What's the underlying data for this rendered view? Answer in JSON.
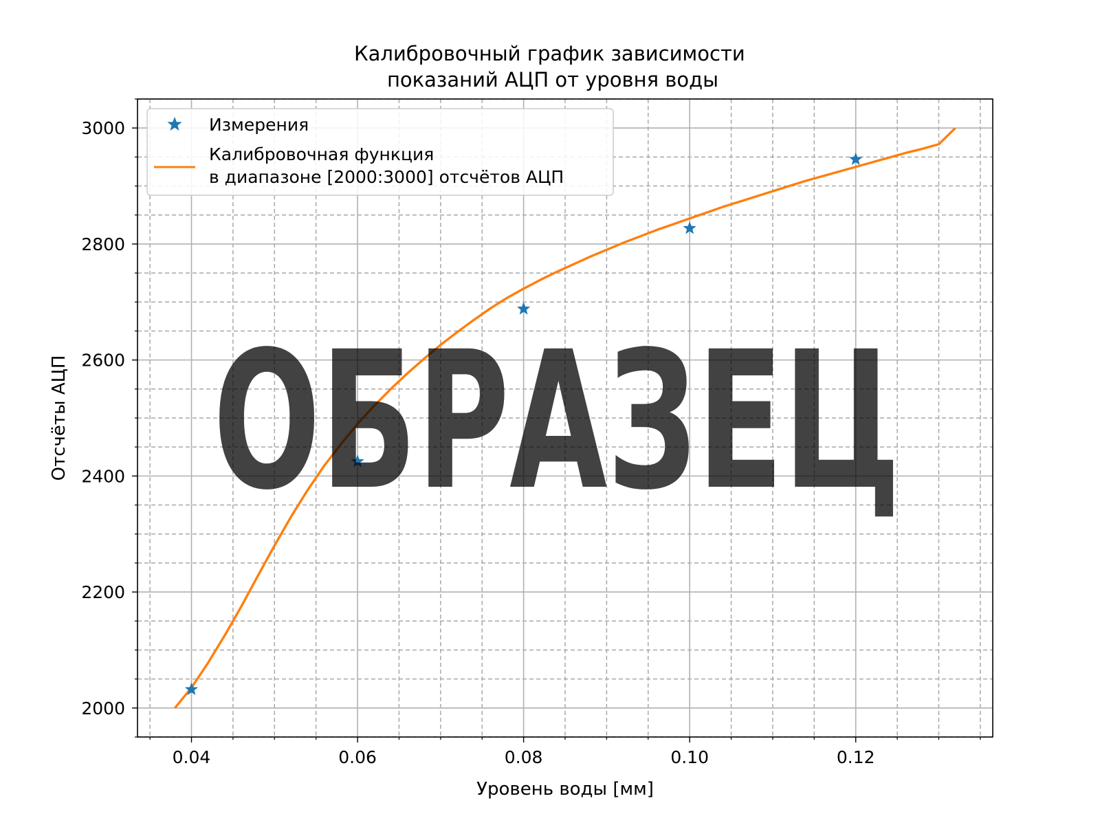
{
  "chart_data": {
    "type": "line",
    "title": "Калибровочный график зависимости\nпоказаний АЦП от уровня воды",
    "xlabel": "Уровень воды [мм]",
    "ylabel": "Отсчёты АЦП",
    "xlim": [
      0.0335,
      0.1365
    ],
    "ylim": [
      1950,
      3050
    ],
    "x_ticks": [
      0.04,
      0.06,
      0.08,
      0.1,
      0.12
    ],
    "x_tick_labels": [
      "0.04",
      "0.06",
      "0.08",
      "0.10",
      "0.12"
    ],
    "y_ticks": [
      2000,
      2200,
      2400,
      2600,
      2800,
      3000
    ],
    "y_tick_labels": [
      "2000",
      "2200",
      "2400",
      "2600",
      "2800",
      "3000"
    ],
    "grid": true,
    "minor_grid": true,
    "legend_position": "upper-left",
    "series": [
      {
        "name": "Измерения",
        "kind": "scatter",
        "marker": "star",
        "color": "#1f77b4",
        "x": [
          0.04,
          0.06,
          0.08,
          0.1,
          0.12
        ],
        "y": [
          2032,
          2425,
          2688,
          2827,
          2946
        ]
      },
      {
        "name": "Калибровочная функция\nв диапазоне [2000:3000] отсчётов АЦП",
        "kind": "line",
        "color": "#ff7f0e",
        "x": [
          0.038,
          0.04,
          0.042,
          0.044,
          0.046,
          0.048,
          0.05,
          0.052,
          0.054,
          0.056,
          0.058,
          0.06,
          0.062,
          0.064,
          0.066,
          0.068,
          0.07,
          0.072,
          0.074,
          0.076,
          0.078,
          0.08,
          0.082,
          0.084,
          0.086,
          0.088,
          0.09,
          0.092,
          0.094,
          0.096,
          0.098,
          0.1,
          0.102,
          0.104,
          0.106,
          0.108,
          0.11,
          0.112,
          0.114,
          0.116,
          0.118,
          0.12,
          0.122,
          0.124,
          0.126,
          0.128,
          0.13,
          0.132
        ],
        "y": [
          2000,
          2035,
          2078,
          2125,
          2175,
          2228,
          2280,
          2330,
          2376,
          2418,
          2455,
          2490,
          2521,
          2550,
          2577,
          2602,
          2626,
          2648,
          2669,
          2689,
          2707,
          2723,
          2738,
          2752,
          2765,
          2778,
          2790,
          2802,
          2813,
          2824,
          2834,
          2844,
          2854,
          2864,
          2873,
          2882,
          2891,
          2900,
          2909,
          2917,
          2925,
          2933,
          2941,
          2949,
          2957,
          2964,
          2972,
          3000
        ]
      }
    ]
  },
  "watermark": {
    "text": "ОБРАЗЕЦ",
    "color": "#555555"
  }
}
